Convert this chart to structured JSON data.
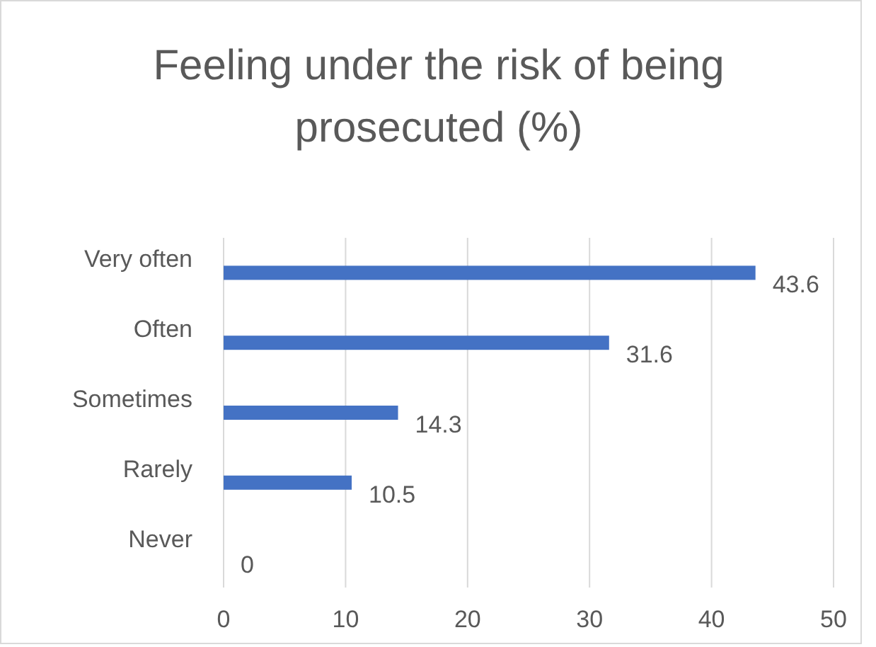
{
  "chart_data": {
    "type": "bar",
    "orientation": "horizontal",
    "title": "Feeling under the risk of being prosecuted (%)",
    "categories": [
      "Very often",
      "Often",
      "Sometimes",
      "Rarely",
      "Never"
    ],
    "values": [
      43.6,
      31.6,
      14.3,
      10.5,
      0
    ],
    "color": "#4472c4",
    "xlim": [
      0,
      50
    ],
    "xticks": [
      0,
      10,
      20,
      30,
      40,
      50
    ],
    "grid": "x",
    "data_labels": true
  }
}
